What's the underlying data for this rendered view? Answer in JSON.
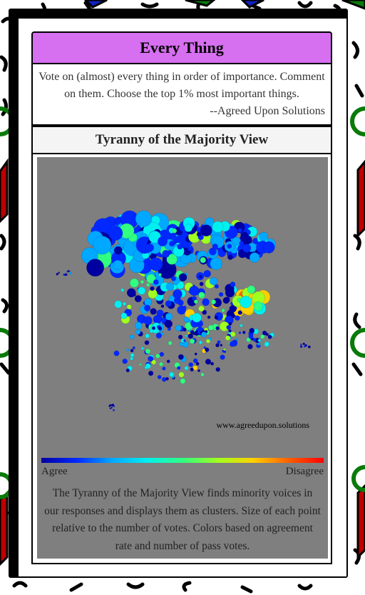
{
  "card": {
    "title": "Every Thing",
    "description": "Vote on (almost) every thing in order of importance. Comment on them. Choose the top 1% most important things.",
    "signature": "--Agreed Upon Solutions"
  },
  "section": {
    "title": "Tyranny of the Majority View"
  },
  "visualization": {
    "watermark": "www.agreedupon.solutions",
    "legend_left": "Agree",
    "legend_right": "Disagree",
    "caption": "The Tyranny of the Majority View finds minority voices in our responses and displays them as clusters. Size of each point relative to the number of votes. Colors based on agreement rate and number of pass votes.",
    "background_color": "#7f7f7f",
    "color_scale": [
      "#0000a0",
      "#0028ff",
      "#00a8ff",
      "#00f0f0",
      "#30ff80",
      "#a0ff20",
      "#ffd000",
      "#ff6000",
      "#ff0000"
    ]
  },
  "theme": {
    "title_bar_color": "#d66ff0",
    "frame_color": "#000000",
    "pattern_accents": [
      "#c00000",
      "#0a7a0a",
      "#1020c0"
    ]
  }
}
